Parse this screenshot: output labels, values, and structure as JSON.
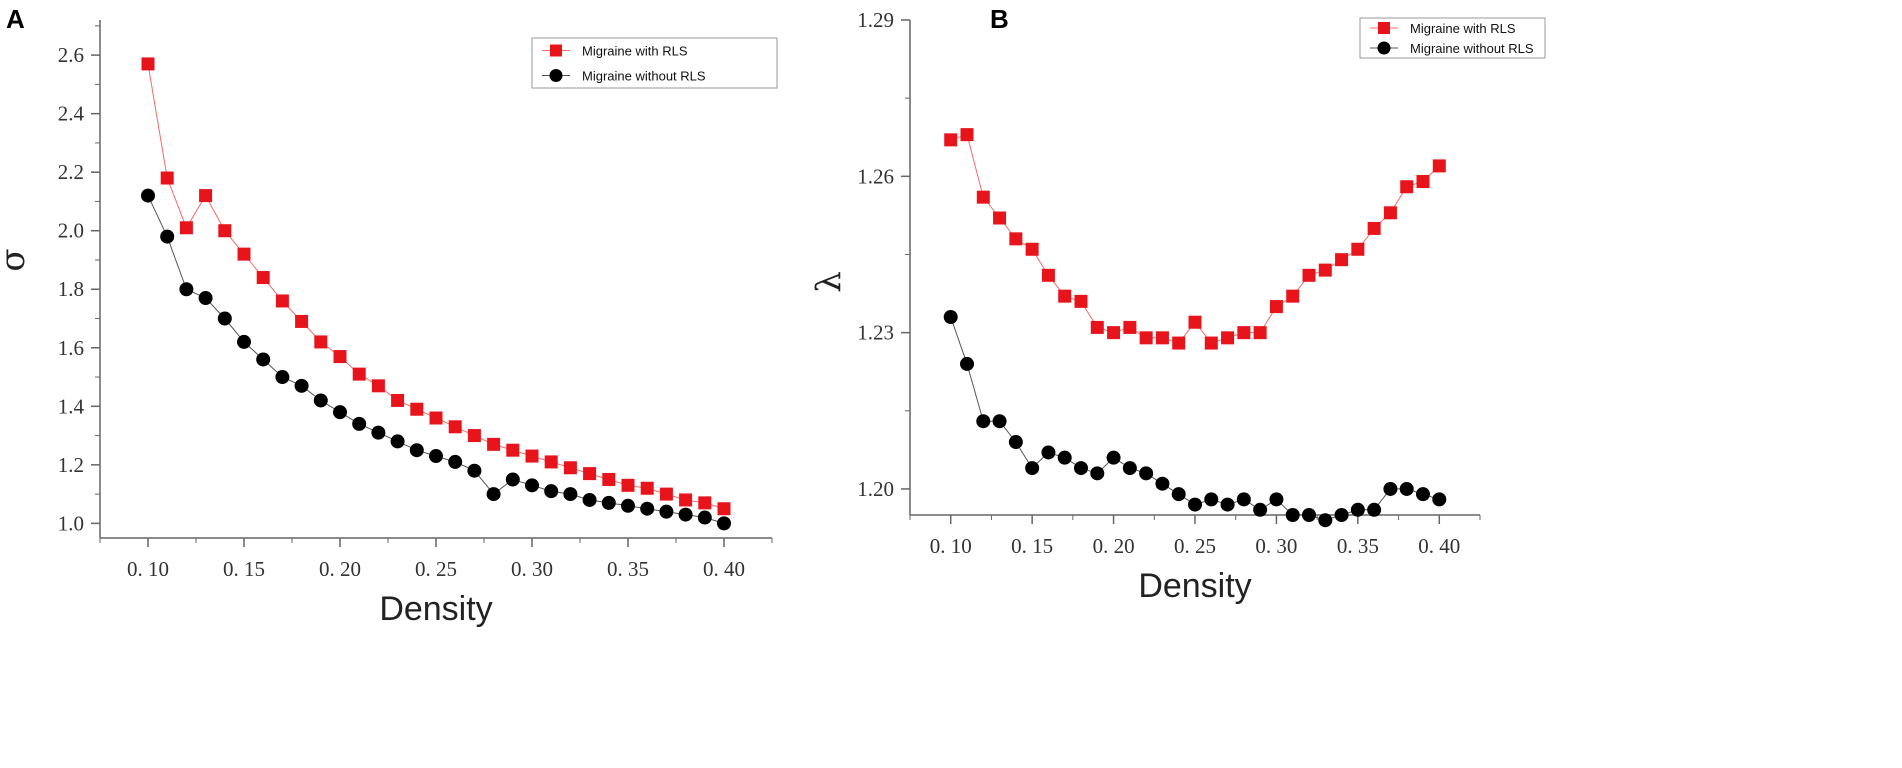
{
  "figure": {
    "panels": [
      "A",
      "B"
    ]
  },
  "colors": {
    "red": "#e8141b",
    "red_line": "#f26b6b",
    "black": "#000000",
    "black_line": "#555555",
    "axis": "#666666"
  },
  "chart_data": [
    {
      "panel": "A",
      "type": "line",
      "title": "",
      "xlabel": "Density",
      "ylabel": "σ",
      "xlim": [
        0.075,
        0.425
      ],
      "ylim": [
        0.95,
        2.72
      ],
      "x_ticks": [
        0.1,
        0.15,
        0.2,
        0.25,
        0.3,
        0.35,
        0.4
      ],
      "x_tick_labels": [
        "0. 10",
        "0. 15",
        "0. 20",
        "0. 25",
        "0. 30",
        "0. 35",
        "0. 40"
      ],
      "y_ticks": [
        1.0,
        1.2,
        1.4,
        1.6,
        1.8,
        2.0,
        2.2,
        2.4,
        2.6
      ],
      "y_tick_labels": [
        "1.0",
        "1.2",
        "1.4",
        "1.6",
        "1.8",
        "2.0",
        "2.2",
        "2.4",
        "2.6"
      ],
      "legend_position": "top-right",
      "x": [
        0.1,
        0.11,
        0.12,
        0.13,
        0.14,
        0.15,
        0.16,
        0.17,
        0.18,
        0.19,
        0.2,
        0.21,
        0.22,
        0.23,
        0.24,
        0.25,
        0.26,
        0.27,
        0.28,
        0.29,
        0.3,
        0.31,
        0.32,
        0.33,
        0.34,
        0.35,
        0.36,
        0.37,
        0.38,
        0.39,
        0.4
      ],
      "series": [
        {
          "name": "Migraine with RLS",
          "marker": "square",
          "values": [
            2.57,
            2.18,
            2.01,
            2.12,
            2.0,
            1.92,
            1.84,
            1.76,
            1.69,
            1.62,
            1.57,
            1.51,
            1.47,
            1.42,
            1.39,
            1.36,
            1.33,
            1.3,
            1.27,
            1.25,
            1.23,
            1.21,
            1.19,
            1.17,
            1.15,
            1.13,
            1.12,
            1.1,
            1.08,
            1.07,
            1.05
          ]
        },
        {
          "name": "Migraine without RLS",
          "marker": "circle",
          "values": [
            2.12,
            1.98,
            1.8,
            1.77,
            1.7,
            1.62,
            1.56,
            1.5,
            1.47,
            1.42,
            1.38,
            1.34,
            1.31,
            1.28,
            1.25,
            1.23,
            1.21,
            1.18,
            1.1,
            1.15,
            1.13,
            1.11,
            1.1,
            1.08,
            1.07,
            1.06,
            1.05,
            1.04,
            1.03,
            1.02,
            1.0
          ]
        }
      ]
    },
    {
      "panel": "B",
      "type": "line",
      "title": "",
      "xlabel": "Density",
      "ylabel": "λ",
      "xlim": [
        0.075,
        0.425
      ],
      "ylim": [
        1.195,
        1.29
      ],
      "x_ticks": [
        0.1,
        0.15,
        0.2,
        0.25,
        0.3,
        0.35,
        0.4
      ],
      "x_tick_labels": [
        "0. 10",
        "0. 15",
        "0. 20",
        "0. 25",
        "0. 30",
        "0. 35",
        "0. 40"
      ],
      "y_ticks": [
        1.2,
        1.23,
        1.26,
        1.29
      ],
      "y_tick_labels": [
        "1.20",
        "1.23",
        "1.26",
        "1.29"
      ],
      "legend_position": "top-right",
      "x": [
        0.1,
        0.11,
        0.12,
        0.13,
        0.14,
        0.15,
        0.16,
        0.17,
        0.18,
        0.19,
        0.2,
        0.21,
        0.22,
        0.23,
        0.24,
        0.25,
        0.26,
        0.27,
        0.28,
        0.29,
        0.3,
        0.31,
        0.32,
        0.33,
        0.34,
        0.35,
        0.36,
        0.37,
        0.38,
        0.39,
        0.4
      ],
      "series": [
        {
          "name": "Migraine with RLS",
          "marker": "square",
          "values": [
            1.267,
            1.268,
            1.256,
            1.252,
            1.248,
            1.246,
            1.241,
            1.237,
            1.236,
            1.231,
            1.23,
            1.231,
            1.229,
            1.229,
            1.228,
            1.232,
            1.228,
            1.229,
            1.23,
            1.23,
            1.235,
            1.237,
            1.241,
            1.242,
            1.244,
            1.246,
            1.25,
            1.253,
            1.258,
            1.259,
            1.262
          ]
        },
        {
          "name": "Migraine without RLS",
          "marker": "circle",
          "values": [
            1.233,
            1.224,
            1.213,
            1.213,
            1.209,
            1.204,
            1.207,
            1.206,
            1.204,
            1.203,
            1.206,
            1.204,
            1.203,
            1.201,
            1.199,
            1.197,
            1.198,
            1.197,
            1.198,
            1.196,
            1.198,
            1.195,
            1.195,
            1.194,
            1.195,
            1.196,
            1.196,
            1.2,
            1.2,
            1.199,
            1.198
          ]
        }
      ]
    }
  ]
}
